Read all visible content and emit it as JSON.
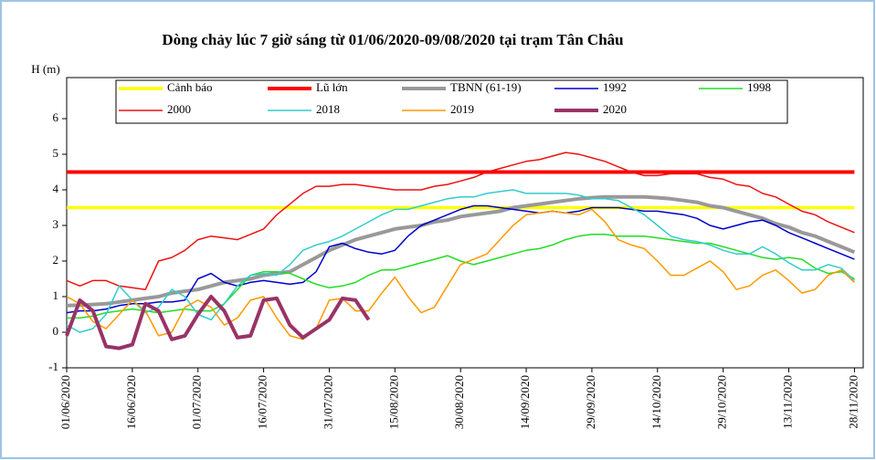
{
  "chart_data": {
    "type": "line",
    "title": "Dòng chảy lúc 7 giờ sáng từ 01/06/2020-09/08/2020 tại trạm Tân Châu",
    "y_label": "H (m)",
    "x": [
      0,
      3,
      6,
      9,
      12,
      15,
      18,
      21,
      24,
      27,
      30,
      33,
      36,
      39,
      42,
      45,
      48,
      51,
      54,
      57,
      60,
      63,
      66,
      69,
      72,
      75,
      78,
      81,
      84,
      87,
      90,
      93,
      96,
      99,
      102,
      105,
      108,
      111,
      114,
      117,
      120,
      123,
      126,
      129,
      132,
      135,
      138,
      141,
      144,
      147,
      150,
      153,
      156,
      159,
      162,
      165,
      168,
      171,
      174,
      177,
      180
    ],
    "xlim": [
      0,
      182
    ],
    "xticks": [
      {
        "value": 0,
        "label": "01/06/2020"
      },
      {
        "value": 15,
        "label": "16/06/2020"
      },
      {
        "value": 30,
        "label": "01/07/2020"
      },
      {
        "value": 45,
        "label": "16/07/2020"
      },
      {
        "value": 60,
        "label": "31/07/2020"
      },
      {
        "value": 75,
        "label": "15/08/2020"
      },
      {
        "value": 90,
        "label": "30/08/2020"
      },
      {
        "value": 105,
        "label": "14/09/2020"
      },
      {
        "value": 120,
        "label": "29/09/2020"
      },
      {
        "value": 135,
        "label": "14/10/2020"
      },
      {
        "value": 150,
        "label": "29/10/2020"
      },
      {
        "value": 165,
        "label": "13/11/2020"
      },
      {
        "value": 180,
        "label": "28/11/2020"
      }
    ],
    "ylim": [
      -1,
      6
    ],
    "yticks": [
      -1,
      0,
      1,
      2,
      3,
      4,
      5,
      6
    ],
    "series": [
      {
        "name": "Cảnh báo",
        "color": "#ffff00",
        "line_width": 3.5,
        "values": [
          3.5,
          3.5,
          3.5,
          3.5,
          3.5,
          3.5,
          3.5,
          3.5,
          3.5,
          3.5,
          3.5,
          3.5,
          3.5,
          3.5,
          3.5,
          3.5,
          3.5,
          3.5,
          3.5,
          3.5,
          3.5,
          3.5,
          3.5,
          3.5,
          3.5,
          3.5,
          3.5,
          3.5,
          3.5,
          3.5,
          3.5,
          3.5,
          3.5,
          3.5,
          3.5,
          3.5,
          3.5,
          3.5,
          3.5,
          3.5,
          3.5,
          3.5,
          3.5,
          3.5,
          3.5,
          3.5,
          3.5,
          3.5,
          3.5,
          3.5,
          3.5,
          3.5,
          3.5,
          3.5,
          3.5,
          3.5,
          3.5,
          3.5,
          3.5,
          3.5,
          3.5
        ]
      },
      {
        "name": "Lũ lớn",
        "color": "#ff0000",
        "line_width": 4,
        "values": [
          4.5,
          4.5,
          4.5,
          4.5,
          4.5,
          4.5,
          4.5,
          4.5,
          4.5,
          4.5,
          4.5,
          4.5,
          4.5,
          4.5,
          4.5,
          4.5,
          4.5,
          4.5,
          4.5,
          4.5,
          4.5,
          4.5,
          4.5,
          4.5,
          4.5,
          4.5,
          4.5,
          4.5,
          4.5,
          4.5,
          4.5,
          4.5,
          4.5,
          4.5,
          4.5,
          4.5,
          4.5,
          4.5,
          4.5,
          4.5,
          4.5,
          4.5,
          4.5,
          4.5,
          4.5,
          4.5,
          4.5,
          4.5,
          4.5,
          4.5,
          4.5,
          4.5,
          4.5,
          4.5,
          4.5,
          4.5,
          4.5,
          4.5,
          4.5,
          4.5,
          4.5
        ]
      },
      {
        "name": "TBNN (61-19)",
        "color": "#999999",
        "line_width": 4,
        "values": [
          0.75,
          0.76,
          0.78,
          0.8,
          0.85,
          0.9,
          0.95,
          1.0,
          1.1,
          1.15,
          1.2,
          1.3,
          1.4,
          1.45,
          1.5,
          1.6,
          1.65,
          1.7,
          1.9,
          2.1,
          2.3,
          2.45,
          2.6,
          2.7,
          2.8,
          2.9,
          2.95,
          3.0,
          3.1,
          3.15,
          3.25,
          3.3,
          3.35,
          3.4,
          3.5,
          3.55,
          3.6,
          3.65,
          3.7,
          3.75,
          3.78,
          3.8,
          3.8,
          3.8,
          3.8,
          3.78,
          3.75,
          3.7,
          3.65,
          3.55,
          3.5,
          3.4,
          3.3,
          3.2,
          3.05,
          2.95,
          2.8,
          2.7,
          2.55,
          2.4,
          2.25
        ]
      },
      {
        "name": "1992",
        "color": "#0000cc",
        "line_width": 1.5,
        "values": [
          0.55,
          0.6,
          0.6,
          0.65,
          0.75,
          0.8,
          0.8,
          0.85,
          0.85,
          0.9,
          1.5,
          1.65,
          1.4,
          1.3,
          1.4,
          1.45,
          1.4,
          1.35,
          1.4,
          1.7,
          2.4,
          2.5,
          2.35,
          2.25,
          2.2,
          2.3,
          2.7,
          3.0,
          3.15,
          3.3,
          3.45,
          3.55,
          3.55,
          3.5,
          3.45,
          3.4,
          3.35,
          3.4,
          3.35,
          3.4,
          3.5,
          3.5,
          3.5,
          3.45,
          3.4,
          3.4,
          3.35,
          3.3,
          3.2,
          3.0,
          2.9,
          3.0,
          3.1,
          3.15,
          3.0,
          2.8,
          2.65,
          2.5,
          2.35,
          2.2,
          2.05
        ]
      },
      {
        "name": "1998",
        "color": "#22dd22",
        "line_width": 1.5,
        "values": [
          0.4,
          0.4,
          0.45,
          0.55,
          0.6,
          0.65,
          0.6,
          0.55,
          0.6,
          0.65,
          0.6,
          0.6,
          0.8,
          1.2,
          1.6,
          1.7,
          1.7,
          1.65,
          1.5,
          1.35,
          1.25,
          1.3,
          1.4,
          1.6,
          1.75,
          1.75,
          1.85,
          1.95,
          2.05,
          2.15,
          2.0,
          1.9,
          2.0,
          2.1,
          2.2,
          2.3,
          2.35,
          2.45,
          2.6,
          2.7,
          2.75,
          2.75,
          2.7,
          2.7,
          2.7,
          2.65,
          2.6,
          2.55,
          2.5,
          2.5,
          2.4,
          2.3,
          2.2,
          2.1,
          2.05,
          2.1,
          2.05,
          1.8,
          1.65,
          1.7,
          1.5
        ]
      },
      {
        "name": "2000",
        "color": "#ee1111",
        "line_width": 1.5,
        "values": [
          1.45,
          1.3,
          1.45,
          1.45,
          1.3,
          1.25,
          1.2,
          2.0,
          2.1,
          2.3,
          2.6,
          2.7,
          2.65,
          2.6,
          2.75,
          2.9,
          3.3,
          3.6,
          3.9,
          4.1,
          4.1,
          4.15,
          4.15,
          4.1,
          4.05,
          4.0,
          4.0,
          4.0,
          4.1,
          4.15,
          4.25,
          4.35,
          4.5,
          4.6,
          4.7,
          4.8,
          4.85,
          4.95,
          5.05,
          5.0,
          4.9,
          4.8,
          4.65,
          4.5,
          4.4,
          4.4,
          4.45,
          4.45,
          4.45,
          4.35,
          4.3,
          4.15,
          4.1,
          3.9,
          3.8,
          3.6,
          3.4,
          3.3,
          3.1,
          2.95,
          2.8
        ]
      },
      {
        "name": "2018",
        "color": "#33cccc",
        "line_width": 1.5,
        "values": [
          0.2,
          0.0,
          0.1,
          0.5,
          1.3,
          0.9,
          0.55,
          0.7,
          1.2,
          1.0,
          0.5,
          0.35,
          0.8,
          1.3,
          1.6,
          1.65,
          1.6,
          1.9,
          2.3,
          2.45,
          2.55,
          2.7,
          2.9,
          3.1,
          3.3,
          3.45,
          3.45,
          3.55,
          3.65,
          3.75,
          3.8,
          3.8,
          3.9,
          3.95,
          4.0,
          3.9,
          3.9,
          3.9,
          3.9,
          3.85,
          3.75,
          3.75,
          3.7,
          3.5,
          3.3,
          3.0,
          2.7,
          2.6,
          2.55,
          2.45,
          2.3,
          2.2,
          2.2,
          2.4,
          2.2,
          1.95,
          1.75,
          1.75,
          1.9,
          1.8,
          1.45
        ]
      },
      {
        "name": "2019",
        "color": "#ff9900",
        "line_width": 1.5,
        "values": [
          1.0,
          0.8,
          0.3,
          0.1,
          0.5,
          0.9,
          0.6,
          -0.1,
          0.0,
          0.7,
          0.9,
          0.7,
          0.2,
          0.4,
          0.9,
          1.0,
          0.4,
          -0.1,
          -0.2,
          0.1,
          0.9,
          0.95,
          0.6,
          0.6,
          1.1,
          1.55,
          1.0,
          0.55,
          0.7,
          1.3,
          1.9,
          2.05,
          2.2,
          2.6,
          3.0,
          3.3,
          3.35,
          3.4,
          3.35,
          3.3,
          3.45,
          3.1,
          2.6,
          2.45,
          2.35,
          2.0,
          1.6,
          1.6,
          1.8,
          2.0,
          1.7,
          1.2,
          1.3,
          1.6,
          1.75,
          1.45,
          1.1,
          1.2,
          1.6,
          1.75,
          1.4
        ]
      },
      {
        "name": "2020",
        "color": "#993366",
        "line_width": 4,
        "values": [
          -0.1,
          0.9,
          0.6,
          -0.4,
          -0.45,
          -0.35,
          0.8,
          0.6,
          -0.2,
          -0.1,
          0.5,
          1.0,
          0.6,
          -0.15,
          -0.1,
          0.9,
          0.95,
          0.2,
          -0.15,
          0.1,
          0.35,
          0.95,
          0.9,
          0.35,
          null,
          null,
          null,
          null,
          null,
          null,
          null,
          null,
          null,
          null,
          null,
          null,
          null,
          null,
          null,
          null,
          null,
          null,
          null,
          null,
          null,
          null,
          null,
          null,
          null,
          null,
          null,
          null,
          null,
          null,
          null,
          null,
          null,
          null,
          null,
          null,
          null
        ]
      }
    ]
  }
}
